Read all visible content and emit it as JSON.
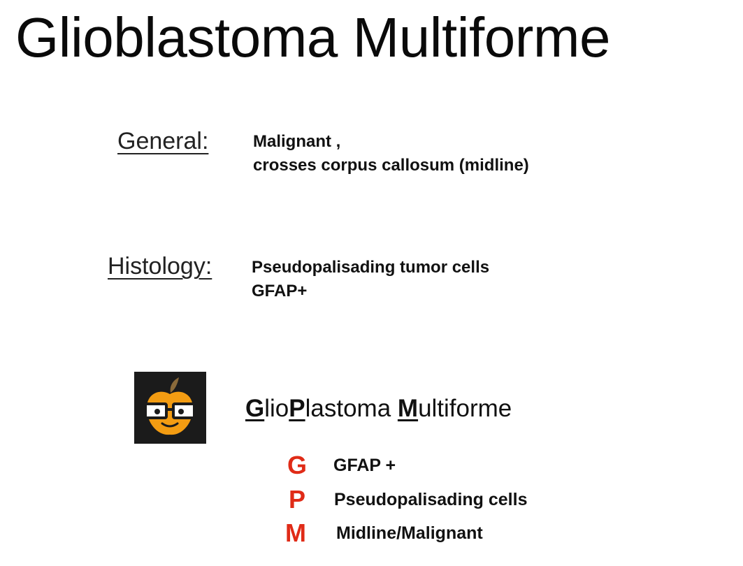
{
  "title": "Glioblastoma Multiforme",
  "general": {
    "label": "General:",
    "lines": [
      "Malignant ,",
      "crosses corpus callosum (midline)"
    ]
  },
  "histology": {
    "label": "Histology:",
    "lines": [
      "Pseudopalisading tumor cells",
      "GFAP+"
    ]
  },
  "mnemonic": {
    "parts": [
      {
        "text": "G",
        "key": true
      },
      {
        "text": "lio",
        "key": false
      },
      {
        "text": "P",
        "key": true
      },
      {
        "text": "lastoma ",
        "key": false
      },
      {
        "text": "M",
        "key": true
      },
      {
        "text": "ultiforme",
        "key": false
      }
    ],
    "rows": [
      {
        "letter": "G",
        "text": "GFAP +"
      },
      {
        "letter": "P",
        "text": "Pseudopalisading cells"
      },
      {
        "letter": "M",
        "text": "Midline/Malignant"
      }
    ]
  },
  "colors": {
    "accent": "#e02b17",
    "logo_bg": "#1b1b1b",
    "apple": "#f39c12"
  },
  "icons": {
    "logo": "nerdy-apple-logo-icon"
  }
}
